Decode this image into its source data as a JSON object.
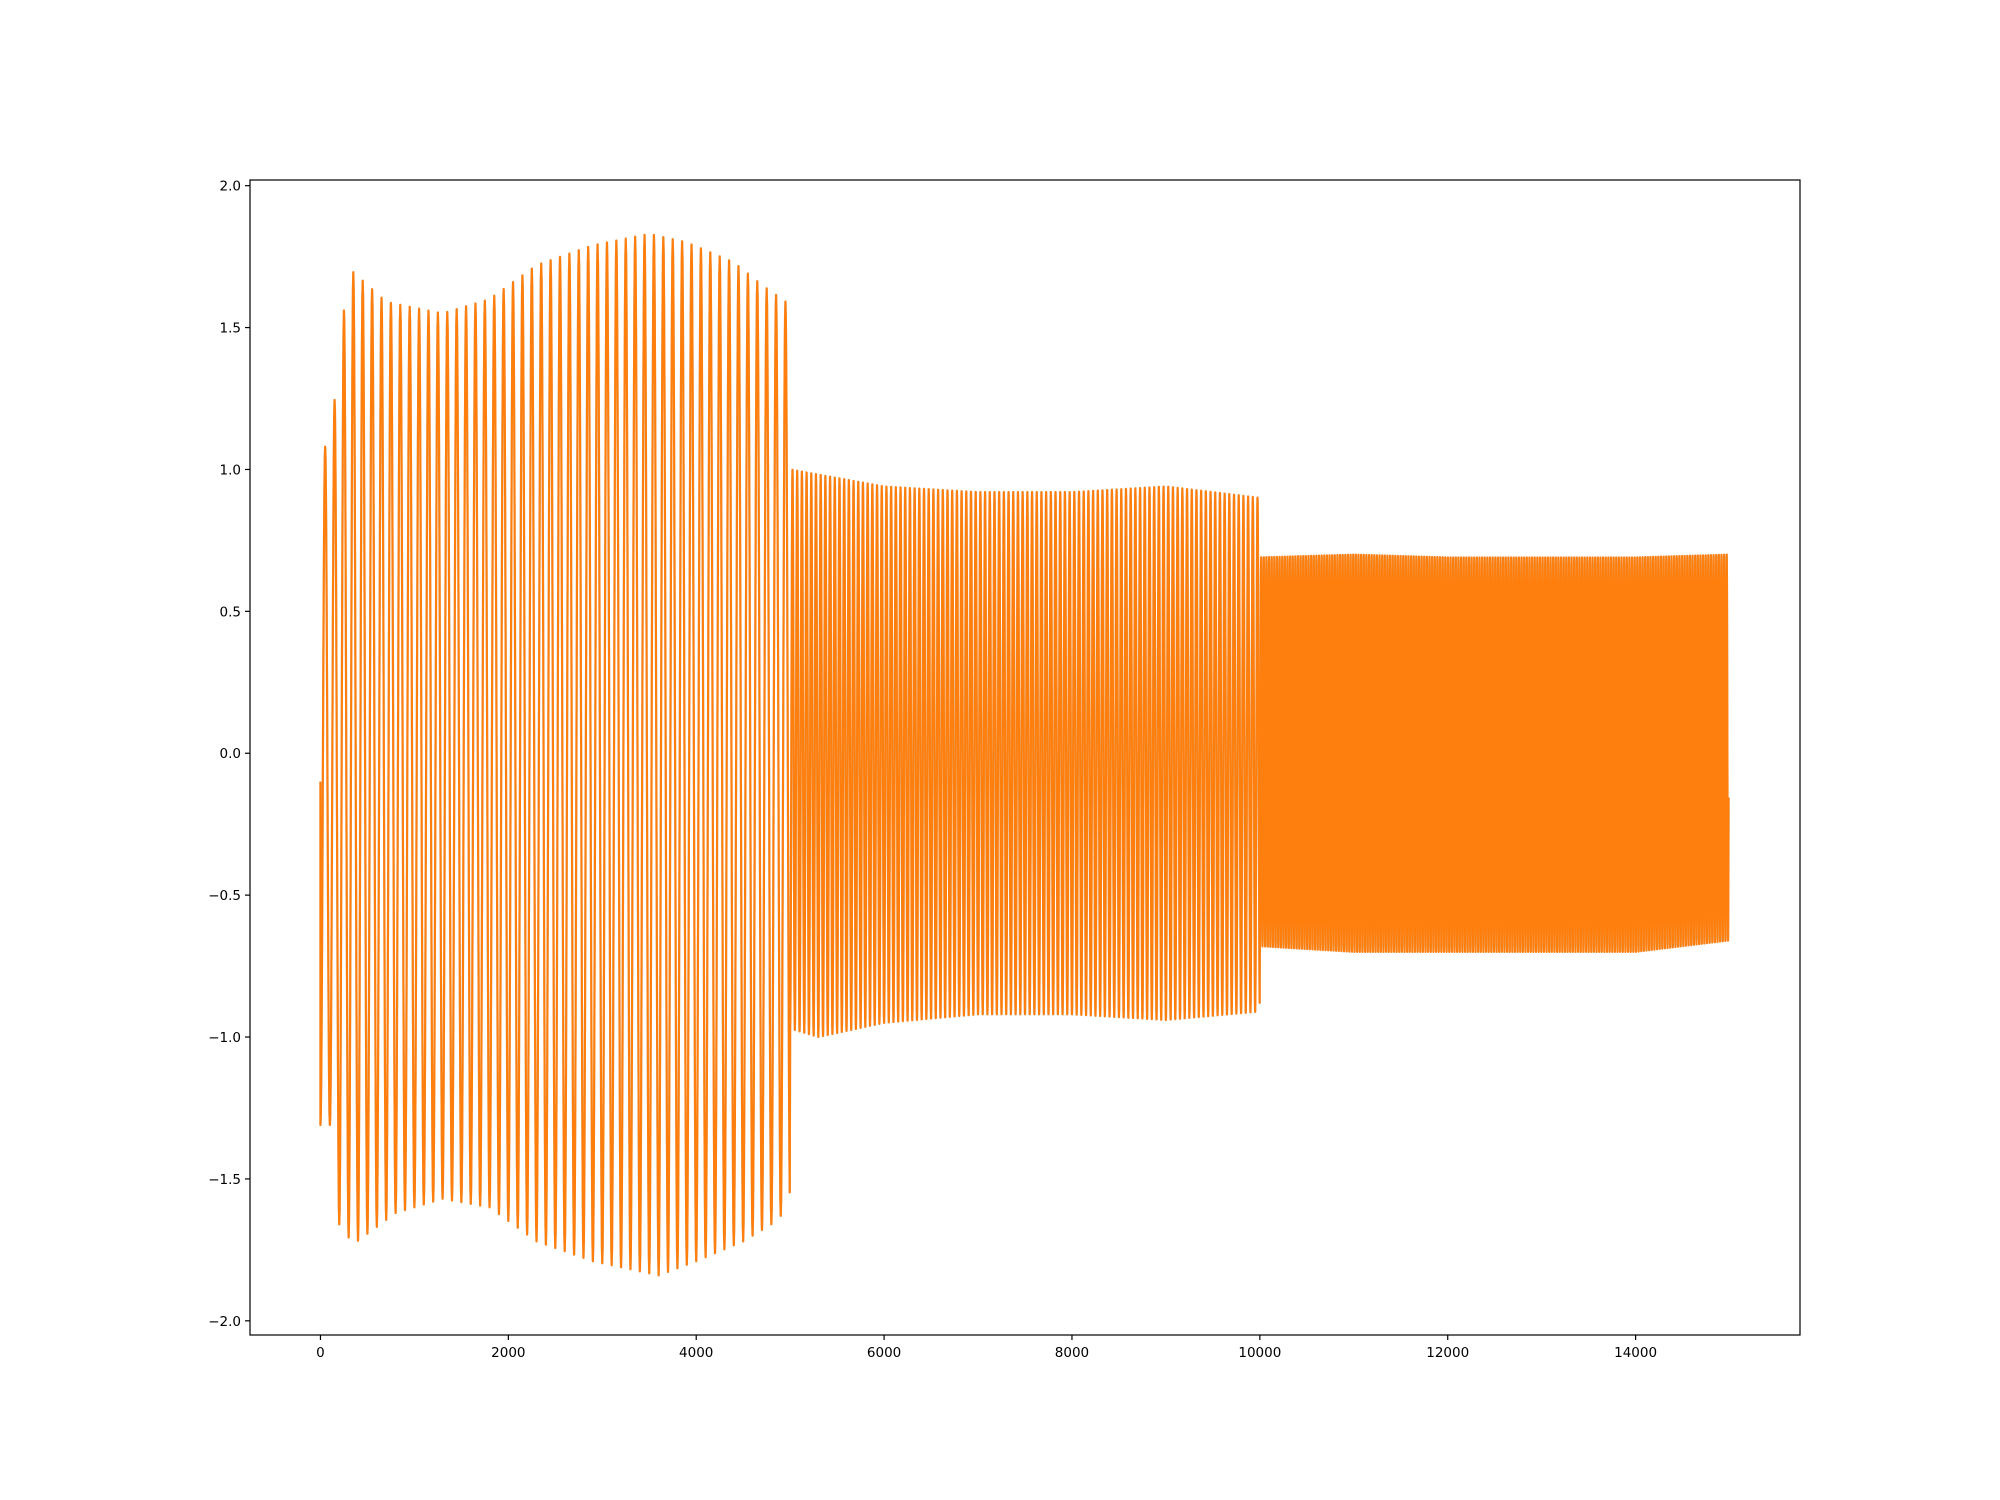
{
  "chart_data": {
    "type": "line",
    "title": "",
    "xlabel": "",
    "ylabel": "",
    "xlim": [
      -750,
      15750
    ],
    "ylim": [
      -2.05,
      2.02
    ],
    "grid": false,
    "legend": "none",
    "x_ticks": [
      0,
      2000,
      4000,
      6000,
      8000,
      10000,
      12000,
      14000
    ],
    "x_tick_labels": [
      "0",
      "2000",
      "4000",
      "6000",
      "8000",
      "10000",
      "12000",
      "14000"
    ],
    "y_ticks": [
      -2.0,
      -1.5,
      -1.0,
      -0.5,
      0.0,
      0.5,
      1.0,
      1.5,
      2.0
    ],
    "y_tick_labels": [
      "−2.0",
      "−1.5",
      "−1.0",
      "−0.5",
      "0.0",
      "0.5",
      "1.0",
      "1.5",
      "2.0"
    ],
    "series": [
      {
        "color": "#ff7f0e",
        "overlay_color": "#1f77b4",
        "x_range": [
          0,
          14990
        ],
        "start_value": -0.1,
        "segments": [
          {
            "x_start": 0,
            "x_end": 5000,
            "period": 100,
            "upper_envelope": [
              [
                100,
                1.08
              ],
              [
                200,
                1.41
              ],
              [
                300,
                1.71
              ],
              [
                700,
                1.59
              ],
              [
                1300,
                1.55
              ],
              [
                1800,
                1.6
              ],
              [
                2300,
                1.72
              ],
              [
                2900,
                1.79
              ],
              [
                3500,
                1.83
              ],
              [
                3900,
                1.8
              ],
              [
                4400,
                1.73
              ],
              [
                4700,
                1.65
              ],
              [
                5000,
                1.58
              ]
            ],
            "lower_envelope": [
              [
                100,
                -1.31
              ],
              [
                200,
                -1.66
              ],
              [
                350,
                -1.73
              ],
              [
                800,
                -1.62
              ],
              [
                1300,
                -1.57
              ],
              [
                1800,
                -1.6
              ],
              [
                2300,
                -1.72
              ],
              [
                2900,
                -1.79
              ],
              [
                3600,
                -1.84
              ],
              [
                4000,
                -1.79
              ],
              [
                4500,
                -1.72
              ],
              [
                4800,
                -1.66
              ],
              [
                5000,
                -1.6
              ]
            ]
          },
          {
            "x_start": 5000,
            "x_end": 10000,
            "period": 50,
            "upper_envelope": [
              [
                5000,
                1.0
              ],
              [
                6000,
                0.94
              ],
              [
                7000,
                0.92
              ],
              [
                8000,
                0.92
              ],
              [
                9000,
                0.94
              ],
              [
                10000,
                0.9
              ]
            ],
            "lower_envelope": [
              [
                5000,
                -0.97
              ],
              [
                5300,
                -1.0
              ],
              [
                6000,
                -0.95
              ],
              [
                7000,
                -0.92
              ],
              [
                8000,
                -0.92
              ],
              [
                9000,
                -0.94
              ],
              [
                10000,
                -0.91
              ]
            ]
          },
          {
            "x_start": 10000,
            "x_end": 14990,
            "period": 28,
            "upper_envelope": [
              [
                10000,
                0.69
              ],
              [
                11000,
                0.7
              ],
              [
                12000,
                0.69
              ],
              [
                13000,
                0.69
              ],
              [
                14000,
                0.69
              ],
              [
                14990,
                0.7
              ]
            ],
            "lower_envelope": [
              [
                10000,
                -0.68
              ],
              [
                11000,
                -0.7
              ],
              [
                12000,
                -0.7
              ],
              [
                13000,
                -0.7
              ],
              [
                14000,
                -0.7
              ],
              [
                14990,
                -0.66
              ]
            ]
          }
        ]
      }
    ]
  }
}
